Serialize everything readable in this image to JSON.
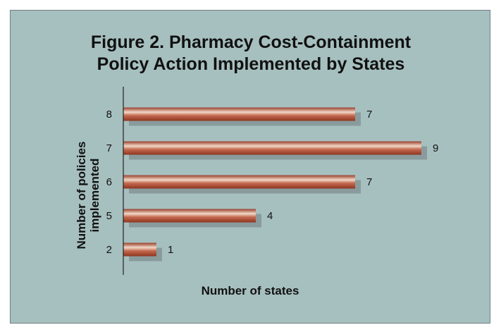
{
  "chart_data": {
    "type": "bar",
    "orientation": "horizontal",
    "title_lines": [
      "Figure 2. Pharmacy Cost-Containment",
      "Policy Action Implemented by States"
    ],
    "xlabel": "Number of states",
    "ylabel_lines": [
      "Number of policies",
      "implemented"
    ],
    "categories": [
      "8",
      "7",
      "6",
      "5",
      "2"
    ],
    "values": [
      7,
      9,
      7,
      4,
      1
    ],
    "data_labels": [
      "7",
      "9",
      "7",
      "4",
      "1"
    ],
    "xlim": [
      0,
      9
    ],
    "grid": false,
    "legend": "none"
  },
  "colors": {
    "background": "#a6c0bf",
    "bar": "#b5533a",
    "bar_highlight": "#f2d8c8",
    "bar_shadow": "#7f8f90"
  }
}
